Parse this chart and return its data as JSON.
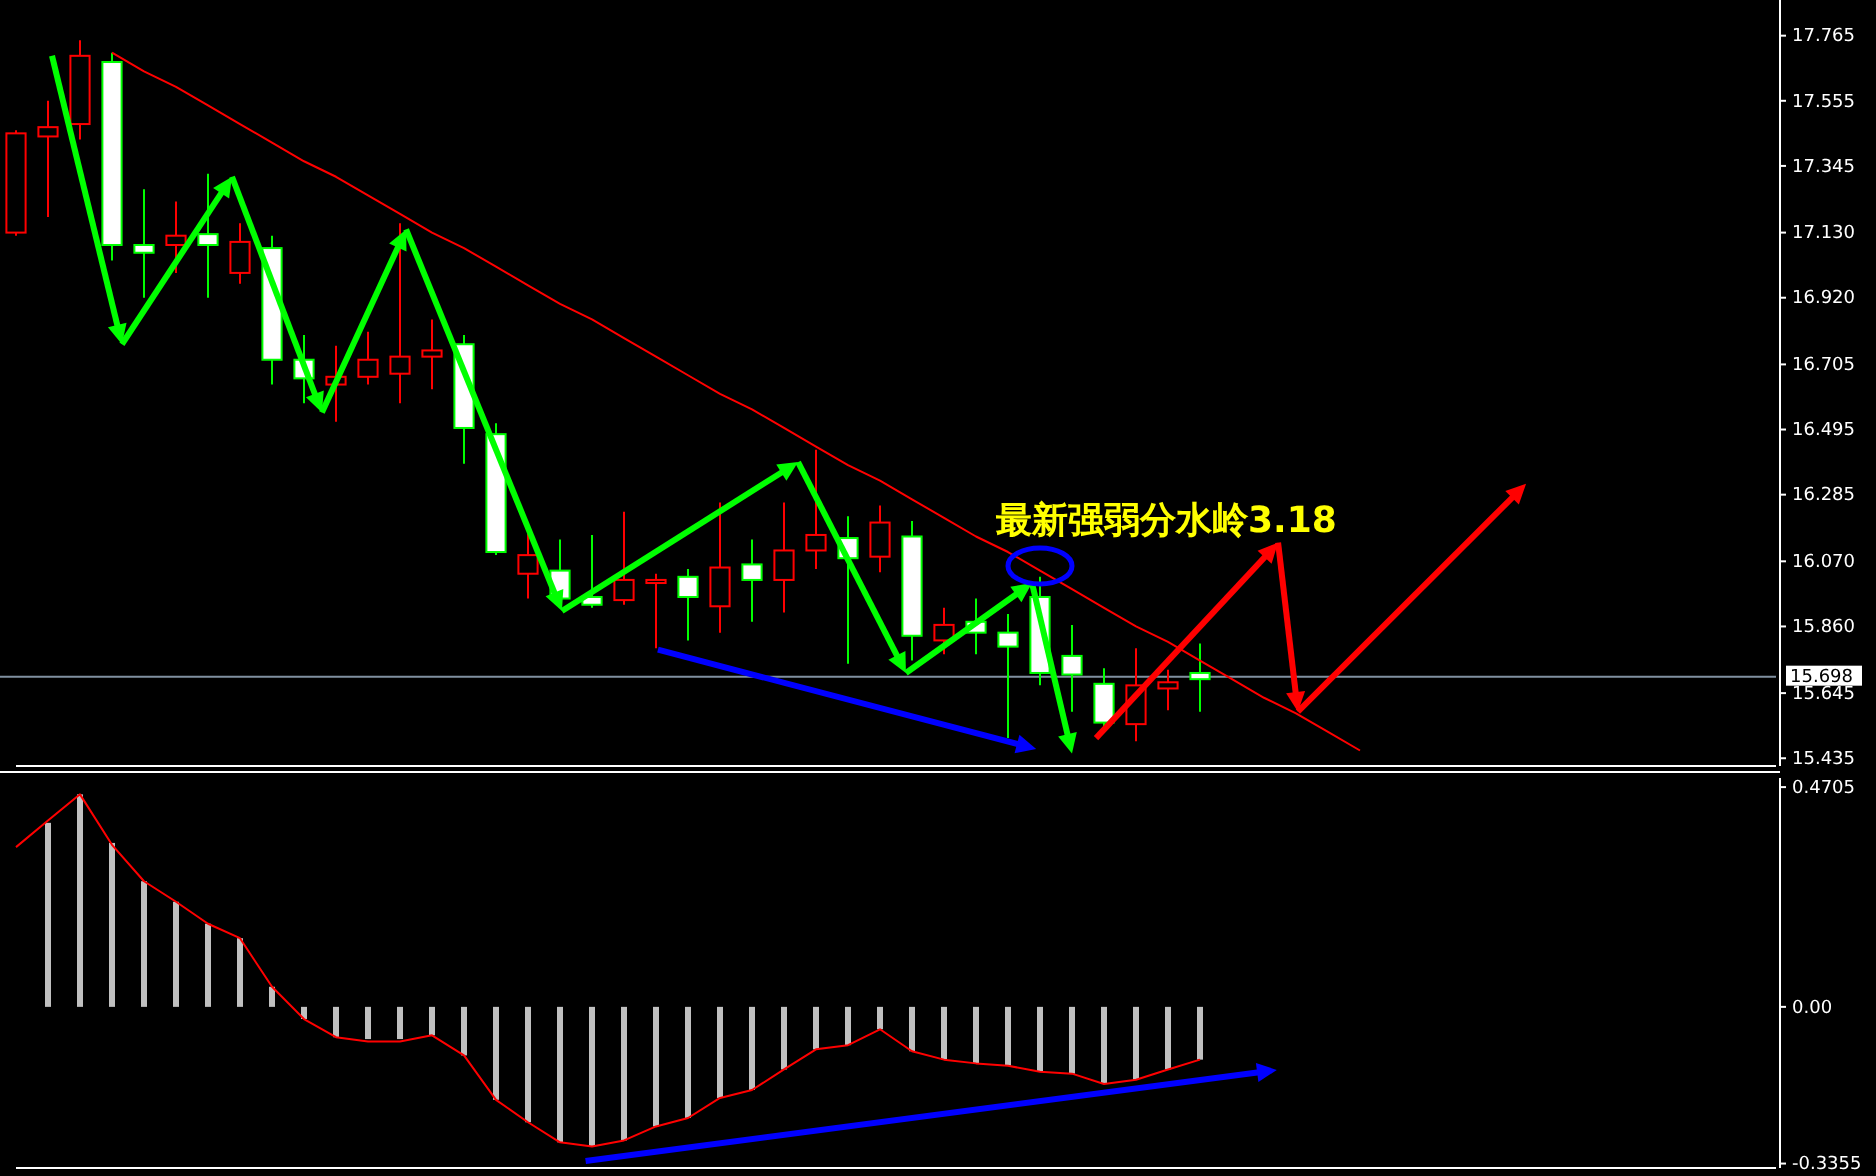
{
  "chart_data": [
    {
      "type": "candlestick",
      "categories": [
        null,
        null,
        null,
        null,
        null,
        null,
        null,
        null,
        null,
        null,
        null,
        null,
        null,
        null,
        null,
        null,
        null,
        null,
        null,
        null,
        null,
        null,
        null,
        null,
        null,
        null,
        null,
        null,
        null,
        null,
        null,
        null,
        null,
        null,
        null,
        null,
        null,
        null,
        null,
        null,
        null,
        null,
        null,
        null,
        null,
        null,
        null,
        null,
        null,
        null,
        null,
        null,
        null,
        null,
        null,
        null
      ],
      "ohlc": [
        [
          17.13,
          17.46,
          17.12,
          17.45
        ],
        [
          17.44,
          17.555,
          17.18,
          17.47
        ],
        [
          17.48,
          17.75,
          17.43,
          17.7
        ],
        [
          17.68,
          17.71,
          17.04,
          17.09
        ],
        [
          17.09,
          17.27,
          16.92,
          17.065
        ],
        [
          17.09,
          17.23,
          17.0,
          17.12
        ],
        [
          17.125,
          17.32,
          16.92,
          17.09
        ],
        [
          17.0,
          17.16,
          16.965,
          17.1
        ],
        [
          17.08,
          17.12,
          16.64,
          16.72
        ],
        [
          16.72,
          16.8,
          16.58,
          16.66
        ],
        [
          16.64,
          16.765,
          16.52,
          16.665
        ],
        [
          16.665,
          16.81,
          16.64,
          16.72
        ],
        [
          16.675,
          17.16,
          16.58,
          16.73
        ],
        [
          16.73,
          16.85,
          16.625,
          16.75
        ],
        [
          16.77,
          16.8,
          16.385,
          16.5
        ],
        [
          16.48,
          16.515,
          16.09,
          16.1
        ],
        [
          16.03,
          16.16,
          15.95,
          16.09
        ],
        [
          16.04,
          16.14,
          15.94,
          15.95
        ],
        [
          15.955,
          16.155,
          15.92,
          15.93
        ],
        [
          15.945,
          16.23,
          15.93,
          16.01
        ],
        [
          16.0,
          16.03,
          15.79,
          16.01
        ],
        [
          16.02,
          16.045,
          15.815,
          15.955
        ],
        [
          15.925,
          16.26,
          15.84,
          16.05
        ],
        [
          16.06,
          16.14,
          15.875,
          16.01
        ],
        [
          16.01,
          16.26,
          15.905,
          16.105
        ],
        [
          16.105,
          16.43,
          16.045,
          16.155
        ],
        [
          16.145,
          16.215,
          15.74,
          16.08
        ],
        [
          16.085,
          16.25,
          16.035,
          16.195
        ],
        [
          16.15,
          16.2,
          15.75,
          15.83
        ],
        [
          15.815,
          15.92,
          15.77,
          15.865
        ],
        [
          15.875,
          15.95,
          15.77,
          15.84
        ],
        [
          15.84,
          15.9,
          15.5,
          15.795
        ],
        [
          15.955,
          16.02,
          15.67,
          15.71
        ],
        [
          15.765,
          15.865,
          15.585,
          15.705
        ],
        [
          15.675,
          15.725,
          15.535,
          15.55
        ],
        [
          15.545,
          15.79,
          15.49,
          15.67
        ],
        [
          15.66,
          15.72,
          15.59,
          15.68
        ],
        [
          15.71,
          15.805,
          15.585,
          15.69
        ],
        null,
        null,
        null,
        null,
        null,
        null,
        null,
        null,
        null,
        null,
        null,
        null,
        null,
        null,
        null,
        null,
        null,
        null
      ],
      "colors": [
        "#ff0000",
        "#ff0000",
        "#ff0000",
        "#ffffff",
        "#ffffff",
        "#ff0000",
        "#ffffff",
        "#ff0000",
        "#ffffff",
        "#ffffff",
        "#ff0000",
        "#ff0000",
        "#ff0000",
        "#ff0000",
        "#ffffff",
        "#ffffff",
        "#ff0000",
        "#ffffff",
        "#ffffff",
        "#ff0000",
        "#ff0000",
        "#ffffff",
        "#ff0000",
        "#ffffff",
        "#ff0000",
        "#ff0000",
        "#ffffff",
        "#ff0000",
        "#ffffff",
        "#ff0000",
        "#ffffff",
        "#ffffff",
        "#ffffff",
        "#ffffff",
        "#ffffff",
        "#ff0000",
        "#ff0000",
        "#ffffff",
        null,
        null,
        null,
        null,
        null,
        null,
        null,
        null,
        null,
        null,
        null,
        null,
        null,
        null,
        null,
        null,
        null,
        null
      ],
      "series": [
        {
          "type": "line",
          "color": "#ff0000",
          "values": [
            null,
            null,
            null,
            17.71,
            17.65,
            17.6,
            17.54,
            17.48,
            17.42,
            17.36,
            17.31,
            17.25,
            17.19,
            17.13,
            17.08,
            17.02,
            16.96,
            16.9,
            16.85,
            16.79,
            16.73,
            16.67,
            16.61,
            16.56,
            16.5,
            16.44,
            16.38,
            16.33,
            16.27,
            16.21,
            16.15,
            16.1,
            16.04,
            15.98,
            15.92,
            15.86,
            15.81,
            15.75,
            15.69,
            15.63,
            15.58,
            15.52,
            15.46,
            null,
            null,
            null,
            null,
            null,
            null,
            null,
            null,
            null,
            null,
            null,
            null,
            null
          ]
        }
      ],
      "ylim": [
        15.41,
        17.88
      ],
      "yticks": [
        17.765,
        17.555,
        17.345,
        {
          "value": 17.13,
          "label": "17.130"
        },
        {
          "value": 16.92,
          "label": "16.920"
        },
        16.705,
        16.495,
        16.285,
        {
          "value": 16.07,
          "label": "16.070"
        },
        {
          "value": 15.86,
          "label": "15.860"
        },
        15.645,
        15.435
      ],
      "ref_lines": [
        {
          "axis": "y",
          "value": 15.698,
          "label": "15.698",
          "color": "#8090a0"
        }
      ],
      "annotations": [
        "最新强弱分水岭3.18"
      ],
      "tick_labels": "y",
      "grid": false
    },
    {
      "type": "bar",
      "categories": [
        null,
        null,
        null,
        null,
        null,
        null,
        null,
        null,
        null,
        null,
        null,
        null,
        null,
        null,
        null,
        null,
        null,
        null,
        null,
        null,
        null,
        null,
        null,
        null,
        null,
        null,
        null,
        null,
        null,
        null,
        null,
        null,
        null,
        null,
        null,
        null,
        null,
        null,
        null,
        null,
        null,
        null,
        null,
        null,
        null,
        null,
        null,
        null,
        null,
        null,
        null,
        null,
        null,
        null,
        null,
        null
      ],
      "series": [
        {
          "type": "bar",
          "color": "#c0c0c0",
          "values": [
            null,
            0.394,
            0.455,
            0.351,
            0.269,
            0.225,
            0.178,
            0.147,
            0.043,
            -0.026,
            -0.065,
            -0.069,
            -0.069,
            -0.061,
            -0.104,
            -0.199,
            -0.247,
            -0.29,
            -0.299,
            -0.286,
            -0.256,
            -0.238,
            -0.195,
            -0.178,
            -0.134,
            -0.091,
            -0.082,
            -0.048,
            -0.095,
            -0.113,
            -0.121,
            -0.126,
            -0.139,
            -0.143,
            -0.165,
            -0.156,
            -0.134,
            -0.113,
            null,
            null,
            null,
            null,
            null,
            null,
            null,
            null,
            null,
            null,
            null,
            null,
            null,
            null,
            null,
            null,
            null,
            null
          ]
        },
        {
          "type": "line",
          "color": "#ff0000",
          "values": [
            0.342,
            0.399,
            0.455,
            0.347,
            0.269,
            0.225,
            0.178,
            0.147,
            0.043,
            -0.026,
            -0.065,
            -0.074,
            -0.074,
            -0.061,
            -0.104,
            -0.199,
            -0.247,
            -0.29,
            -0.299,
            -0.286,
            -0.256,
            -0.238,
            -0.195,
            -0.178,
            -0.134,
            -0.091,
            -0.082,
            -0.048,
            -0.095,
            -0.113,
            -0.121,
            -0.126,
            -0.139,
            -0.143,
            -0.165,
            -0.156,
            -0.134,
            -0.113,
            null,
            null,
            null,
            null,
            null,
            null,
            null,
            null,
            null,
            null,
            null,
            null,
            null,
            null,
            null,
            null,
            null,
            null
          ]
        }
      ],
      "ylim": [
        -0.345,
        0.49
      ],
      "yticks": [
        0.4705,
        {
          "value": 0,
          "label": "0.00"
        },
        -0.3355
      ],
      "tick_labels": "y",
      "grid": false
    }
  ]
}
